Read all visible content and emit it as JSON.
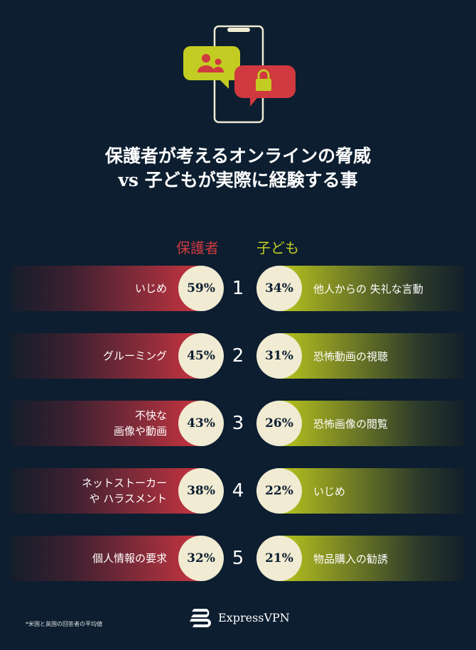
{
  "title": {
    "line1": "保護者が考えるオンラインの脅威",
    "line2": "vs 子どもが実際に経験する事"
  },
  "columns": {
    "parent": "保護者",
    "child": "子ども"
  },
  "colors": {
    "background": "#0c1e30",
    "parent": "#c9343f",
    "child": "#b8c41e",
    "circle": "#f0ebd2"
  },
  "rows": [
    {
      "rank": "1",
      "parent_label": "いじめ",
      "parent_pct": "59%",
      "child_pct": "34%",
      "child_label": "他人からの 失礼な言動"
    },
    {
      "rank": "2",
      "parent_label": "グルーミング",
      "parent_pct": "45%",
      "child_pct": "31%",
      "child_label": "恐怖動画の視聴"
    },
    {
      "rank": "3",
      "parent_label": "不快な\n画像や動画",
      "parent_pct": "43%",
      "child_pct": "26%",
      "child_label": "恐怖画像の閲覧"
    },
    {
      "rank": "4",
      "parent_label": "ネットストーカー\nや ハラスメント",
      "parent_pct": "38%",
      "child_pct": "22%",
      "child_label": "いじめ"
    },
    {
      "rank": "5",
      "parent_label": "個人情報の要求",
      "parent_pct": "32%",
      "child_pct": "21%",
      "child_label": "物品購入の勧誘"
    }
  ],
  "footnote": "*米国と英国の回答者の平均値",
  "brand": "ExpressVPN"
}
